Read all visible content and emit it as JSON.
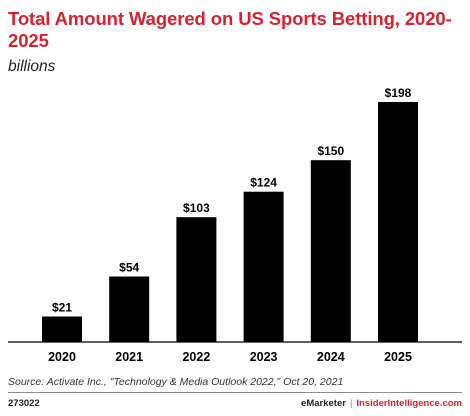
{
  "header": {
    "title": "Total Amount Wagered on US Sports Betting, 2020-2025",
    "subtitle": "billions"
  },
  "chart_data": {
    "type": "bar",
    "title": "Total Amount Wagered on US Sports Betting, 2020-2025",
    "subtitle": "billions",
    "xlabel": "",
    "ylabel": "",
    "categories": [
      "2020",
      "2021",
      "2022",
      "2023",
      "2024",
      "2025"
    ],
    "values": [
      21,
      54,
      103,
      124,
      150,
      198
    ],
    "value_labels": [
      "$21",
      "$54",
      "$103",
      "$124",
      "$150",
      "$198"
    ],
    "ylim": [
      0,
      198
    ],
    "grid": false,
    "legend": "none",
    "bar_color": "#000000"
  },
  "footer": {
    "source": "Source: Activate Inc., \"Technology & Media Outlook 2022,\" Oct 20, 2021",
    "chart_id": "273022",
    "brand": "eMarketer",
    "separator": "|",
    "site": "InsiderIntelligence.com"
  },
  "colors": {
    "title": "#d7232f",
    "bars": "#000000",
    "axis": "#000000",
    "site": "#d7232f"
  }
}
